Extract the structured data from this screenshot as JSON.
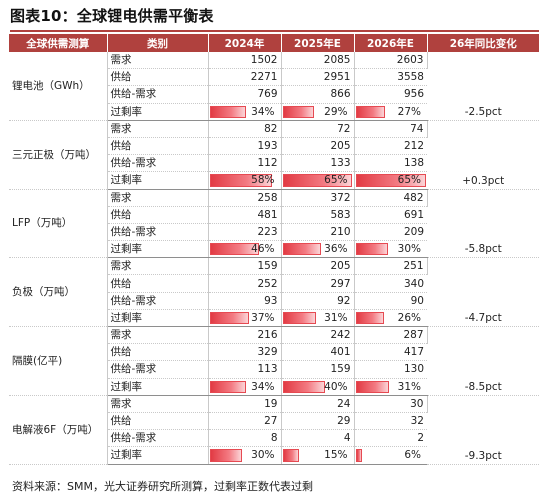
{
  "title": "图表10：全球锂电供需平衡表",
  "headers": [
    "全球供需测算",
    "类别",
    "2024年",
    "2025年E",
    "2026年E",
    "26年同比变化"
  ],
  "groups": [
    {
      "segment": "锂电池（GWh）",
      "rows": [
        {
          "category": "需求",
          "y2024": "1502",
          "y2025": "2085",
          "y2026": "2603"
        },
        {
          "category": "供给",
          "y2024": "2271",
          "y2025": "2951",
          "y2026": "3558"
        },
        {
          "category": "供给-需求",
          "y2024": "769",
          "y2025": "866",
          "y2026": "956"
        }
      ],
      "surplus": {
        "category": "过剩率",
        "y2024": "34%",
        "y2025": "29%",
        "y2026": "27%",
        "levels": [
          34,
          29,
          27
        ]
      },
      "change": "-2.5pct"
    },
    {
      "segment": "三元正极（万吨）",
      "rows": [
        {
          "category": "需求",
          "y2024": "82",
          "y2025": "72",
          "y2026": "74"
        },
        {
          "category": "供给",
          "y2024": "193",
          "y2025": "205",
          "y2026": "212"
        },
        {
          "category": "供给-需求",
          "y2024": "112",
          "y2025": "133",
          "y2026": "138"
        }
      ],
      "surplus": {
        "category": "过剩率",
        "y2024": "58%",
        "y2025": "65%",
        "y2026": "65%",
        "levels": [
          58,
          65,
          65
        ]
      },
      "change": "+0.3pct"
    },
    {
      "segment": "LFP（万吨）",
      "rows": [
        {
          "category": "需求",
          "y2024": "258",
          "y2025": "372",
          "y2026": "482"
        },
        {
          "category": "供给",
          "y2024": "481",
          "y2025": "583",
          "y2026": "691"
        },
        {
          "category": "供给-需求",
          "y2024": "223",
          "y2025": "210",
          "y2026": "209"
        }
      ],
      "surplus": {
        "category": "过剩率",
        "y2024": "46%",
        "y2025": "36%",
        "y2026": "30%",
        "levels": [
          46,
          36,
          30
        ]
      },
      "change": "-5.8pct"
    },
    {
      "segment": "负极（万吨）",
      "rows": [
        {
          "category": "需求",
          "y2024": "159",
          "y2025": "205",
          "y2026": "251"
        },
        {
          "category": "供给",
          "y2024": "252",
          "y2025": "297",
          "y2026": "340"
        },
        {
          "category": "供给-需求",
          "y2024": "93",
          "y2025": "92",
          "y2026": "90"
        }
      ],
      "surplus": {
        "category": "过剩率",
        "y2024": "37%",
        "y2025": "31%",
        "y2026": "26%",
        "levels": [
          37,
          31,
          26
        ]
      },
      "change": "-4.7pct"
    },
    {
      "segment": "隔膜(亿平)",
      "rows": [
        {
          "category": "需求",
          "y2024": "216",
          "y2025": "242",
          "y2026": "287"
        },
        {
          "category": "供给",
          "y2024": "329",
          "y2025": "401",
          "y2026": "417"
        },
        {
          "category": "供给-需求",
          "y2024": "113",
          "y2025": "159",
          "y2026": "130"
        }
      ],
      "surplus": {
        "category": "过剩率",
        "y2024": "34%",
        "y2025": "40%",
        "y2026": "31%",
        "levels": [
          34,
          40,
          31
        ]
      },
      "change": "-8.5pct"
    },
    {
      "segment": "电解液6F（万吨）",
      "rows": [
        {
          "category": "需求",
          "y2024": "19",
          "y2025": "24",
          "y2026": "30"
        },
        {
          "category": "供给",
          "y2024": "27",
          "y2025": "29",
          "y2026": "32"
        },
        {
          "category": "供给-需求",
          "y2024": "8",
          "y2025": "4",
          "y2026": "2"
        }
      ],
      "surplus": {
        "category": "过剩率",
        "y2024": "30%",
        "y2025": "15%",
        "y2026": "6%",
        "levels": [
          30,
          15,
          6
        ]
      },
      "change": "-9.3pct"
    }
  ],
  "source": "资料来源：SMM，光大证券研究所测算，过剩率正数代表过剩",
  "colors": {
    "header_bg": "#b0413e",
    "bar_fill": "#e23b44"
  }
}
